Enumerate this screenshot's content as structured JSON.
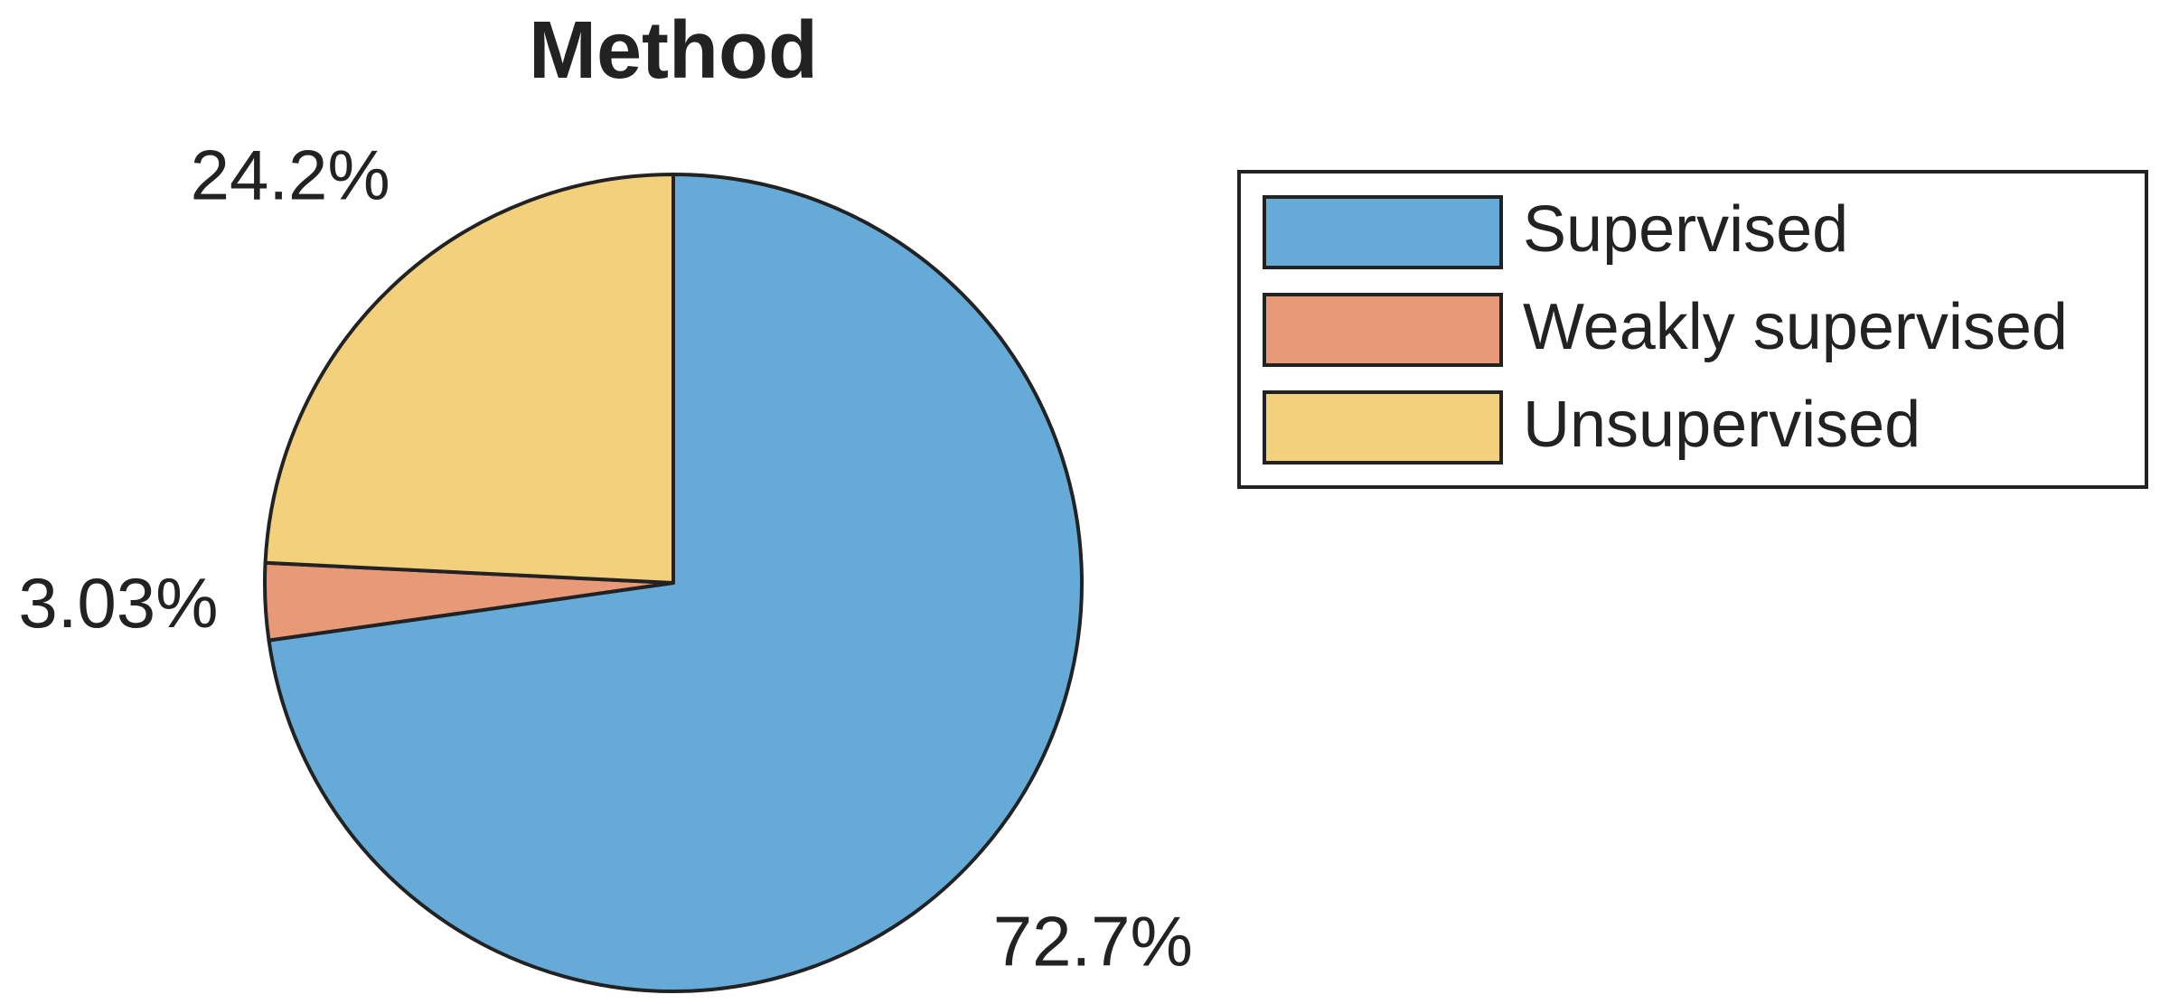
{
  "chart_data": {
    "type": "pie",
    "title": "Method",
    "categories": [
      "Supervised",
      "Weakly supervised",
      "Unsupervised"
    ],
    "values": [
      72.7,
      3.03,
      24.2
    ],
    "value_labels": [
      "72.7%",
      "3.03%",
      "24.2%"
    ],
    "colors": [
      "#66aad7",
      "#e89a78",
      "#f2d07c"
    ],
    "legend": "right"
  }
}
